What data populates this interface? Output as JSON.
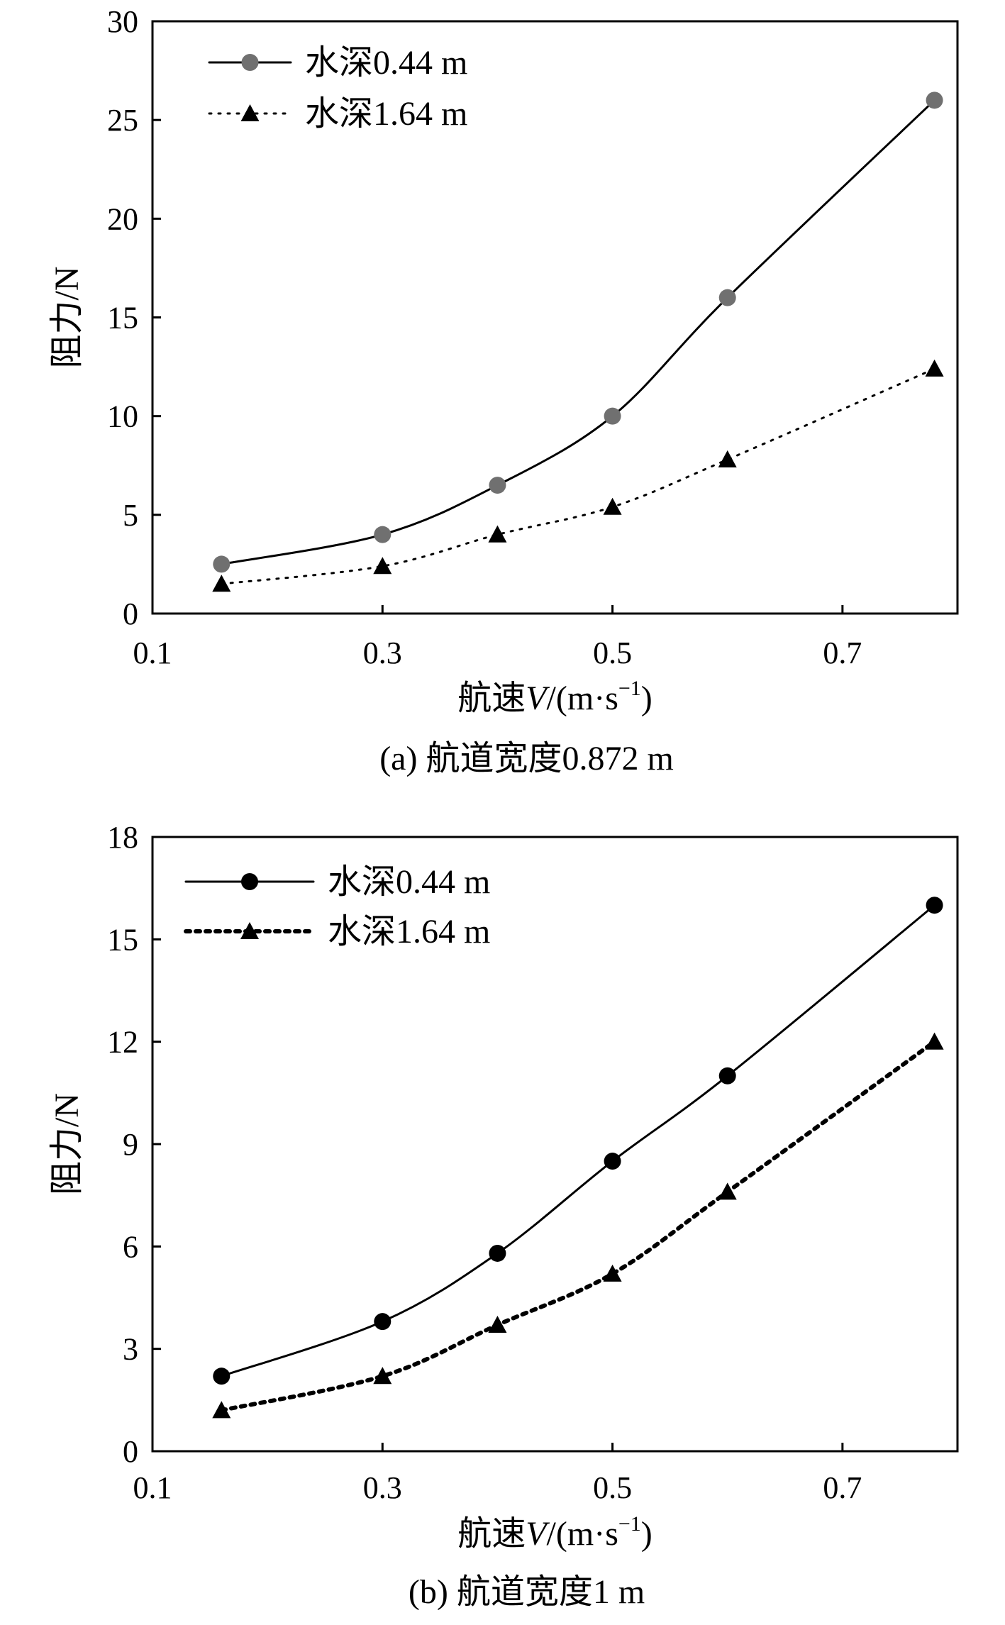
{
  "chart_data": [
    {
      "type": "line",
      "caption": "(a) 航道宽度0.872 m",
      "xlabel_prefix": "航速",
      "xlabel_var": "V",
      "xlabel_unit": "/(m·s",
      "xlabel_sup": "−1",
      "xlabel_close": ")",
      "ylabel": "阻力/N",
      "xlim": [
        0.1,
        0.8
      ],
      "ylim": [
        0,
        30
      ],
      "xticks": [
        "0.1",
        "0.3",
        "0.5",
        "0.7"
      ],
      "yticks": [
        "0",
        "5",
        "10",
        "15",
        "20",
        "25",
        "30"
      ],
      "grid": false,
      "legend_position": "top-left",
      "series": [
        {
          "name": "水深0.44 m",
          "marker": "circle",
          "line": "solid",
          "color": "#707070",
          "x": [
            0.16,
            0.3,
            0.4,
            0.5,
            0.6,
            0.78
          ],
          "y": [
            2.5,
            4.0,
            6.5,
            10.0,
            16.0,
            26.0
          ]
        },
        {
          "name": "水深1.64 m",
          "marker": "triangle",
          "line": "dotted",
          "color": "#000000",
          "x": [
            0.16,
            0.3,
            0.4,
            0.5,
            0.6,
            0.78
          ],
          "y": [
            1.5,
            2.4,
            4.0,
            5.4,
            7.8,
            12.4
          ]
        }
      ]
    },
    {
      "type": "line",
      "caption": "(b) 航道宽度1 m",
      "xlabel_prefix": "航速",
      "xlabel_var": "V",
      "xlabel_unit": "/(m·s",
      "xlabel_sup": "−1",
      "xlabel_close": ")",
      "ylabel": "阻力/N",
      "xlim": [
        0.1,
        0.8
      ],
      "ylim": [
        0,
        18
      ],
      "xticks": [
        "0.1",
        "0.3",
        "0.5",
        "0.7"
      ],
      "yticks": [
        "0",
        "3",
        "6",
        "9",
        "12",
        "15",
        "18"
      ],
      "grid": false,
      "legend_position": "top-left",
      "series": [
        {
          "name": "水深0.44 m",
          "marker": "circle",
          "line": "solid",
          "color": "#000000",
          "x": [
            0.16,
            0.3,
            0.4,
            0.5,
            0.6,
            0.78
          ],
          "y": [
            2.2,
            3.8,
            5.8,
            8.5,
            11.0,
            16.0
          ]
        },
        {
          "name": "水深1.64 m",
          "marker": "triangle",
          "line": "dotted-bold",
          "color": "#000000",
          "x": [
            0.16,
            0.3,
            0.4,
            0.5,
            0.6,
            0.78
          ],
          "y": [
            1.2,
            2.2,
            3.7,
            5.2,
            7.6,
            12.0
          ]
        }
      ]
    }
  ]
}
